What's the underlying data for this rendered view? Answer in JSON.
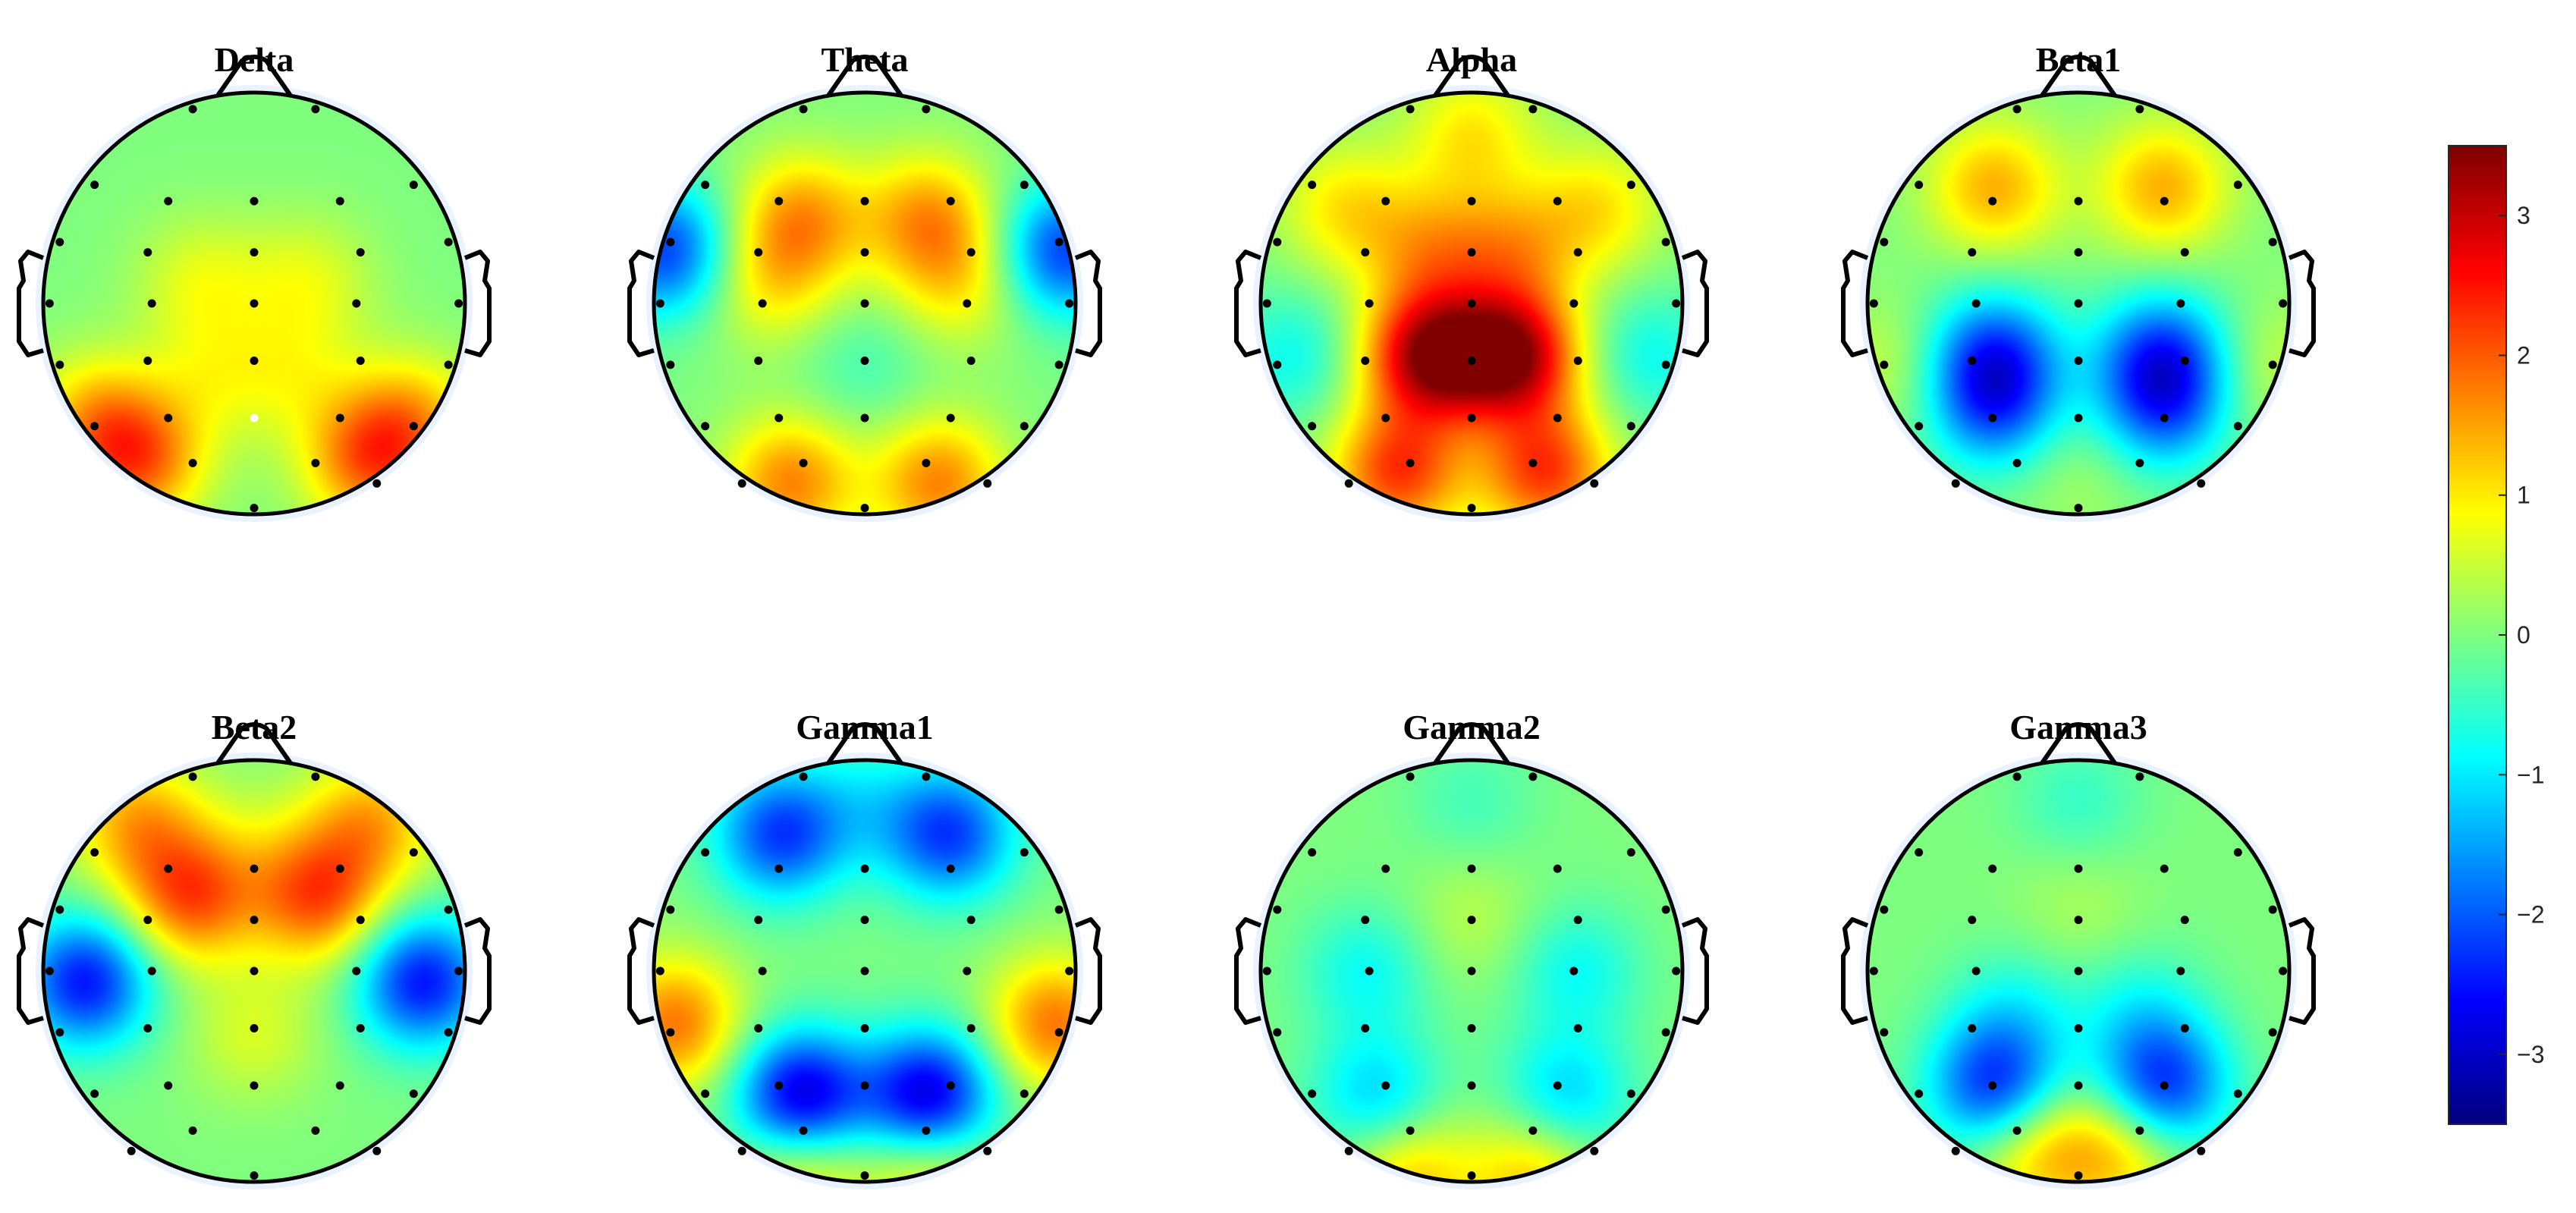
{
  "chart_data": {
    "type": "heatmap",
    "panels": [
      {
        "title": "Delta",
        "sources": [
          {
            "x": -0.55,
            "y": -0.75,
            "v": 1.8
          },
          {
            "x": 0.55,
            "y": -0.75,
            "v": 1.8
          },
          {
            "x": -0.75,
            "y": -0.55,
            "v": 1.2
          },
          {
            "x": 0.75,
            "y": -0.55,
            "v": 1.2
          },
          {
            "x": -0.25,
            "y": 0.1,
            "v": 0.7
          },
          {
            "x": 0.25,
            "y": 0.1,
            "v": 0.7
          },
          {
            "x": -0.2,
            "y": -0.35,
            "v": 0.6
          },
          {
            "x": 0.2,
            "y": -0.35,
            "v": 0.6
          }
        ],
        "highlight_sensors": [
          24,
          27
        ]
      },
      {
        "title": "Theta",
        "sources": [
          {
            "x": -0.95,
            "y": 0.25,
            "v": -2.2
          },
          {
            "x": 0.95,
            "y": 0.25,
            "v": -2.2
          },
          {
            "x": -0.3,
            "y": 0.4,
            "v": 1.5
          },
          {
            "x": 0.3,
            "y": 0.4,
            "v": 1.5
          },
          {
            "x": -0.35,
            "y": -0.85,
            "v": 1.7
          },
          {
            "x": 0.35,
            "y": -0.85,
            "v": 1.7
          },
          {
            "x": -0.45,
            "y": 0.1,
            "v": 0.9
          },
          {
            "x": 0.45,
            "y": 0.1,
            "v": 0.9
          },
          {
            "x": 0,
            "y": -0.3,
            "v": -0.4
          }
        ]
      },
      {
        "title": "Alpha",
        "sources": [
          {
            "x": -0.2,
            "y": -0.25,
            "v": 3.2
          },
          {
            "x": 0.2,
            "y": -0.25,
            "v": 3.2
          },
          {
            "x": -0.35,
            "y": -0.8,
            "v": 2.2
          },
          {
            "x": 0.35,
            "y": -0.8,
            "v": 2.2
          },
          {
            "x": -0.2,
            "y": 0.25,
            "v": 1.2
          },
          {
            "x": 0.2,
            "y": 0.25,
            "v": 1.2
          },
          {
            "x": -0.85,
            "y": -0.25,
            "v": -0.8
          },
          {
            "x": 0.85,
            "y": -0.25,
            "v": -0.8
          },
          {
            "x": -0.6,
            "y": 0.45,
            "v": 1.0
          },
          {
            "x": 0.6,
            "y": 0.45,
            "v": 1.0
          },
          {
            "x": 0,
            "y": 0.8,
            "v": 1.0
          }
        ]
      },
      {
        "title": "Beta1",
        "sources": [
          {
            "x": -0.4,
            "y": -0.25,
            "v": -2.0
          },
          {
            "x": 0.4,
            "y": -0.25,
            "v": -2.0
          },
          {
            "x": -0.4,
            "y": -0.5,
            "v": -1.6
          },
          {
            "x": 0.4,
            "y": -0.5,
            "v": -1.6
          },
          {
            "x": -0.4,
            "y": 0.55,
            "v": 1.4
          },
          {
            "x": 0.4,
            "y": 0.55,
            "v": 1.4
          },
          {
            "x": -0.9,
            "y": -0.3,
            "v": 0.5
          },
          {
            "x": 0.9,
            "y": -0.3,
            "v": 0.5
          },
          {
            "x": 0,
            "y": -0.8,
            "v": 0.3
          }
        ]
      },
      {
        "title": "Beta2",
        "sources": [
          {
            "x": -0.8,
            "y": -0.05,
            "v": -2.5
          },
          {
            "x": 0.8,
            "y": -0.05,
            "v": -2.5
          },
          {
            "x": -0.3,
            "y": 0.35,
            "v": 2.0
          },
          {
            "x": 0.3,
            "y": 0.35,
            "v": 2.0
          },
          {
            "x": -0.55,
            "y": 0.7,
            "v": 1.4
          },
          {
            "x": 0.55,
            "y": 0.7,
            "v": 1.4
          },
          {
            "x": 0,
            "y": 0.6,
            "v": 0.3
          },
          {
            "x": 0,
            "y": -0.3,
            "v": 0.6
          }
        ]
      },
      {
        "title": "Gamma1",
        "sources": [
          {
            "x": -0.3,
            "y": -0.6,
            "v": -3.0
          },
          {
            "x": 0.3,
            "y": -0.6,
            "v": -3.0
          },
          {
            "x": -0.4,
            "y": 0.65,
            "v": -2.2
          },
          {
            "x": 0.4,
            "y": 0.65,
            "v": -2.2
          },
          {
            "x": -0.9,
            "y": -0.25,
            "v": 1.8
          },
          {
            "x": 0.9,
            "y": -0.25,
            "v": 1.8
          },
          {
            "x": -0.3,
            "y": -0.95,
            "v": 1.2
          },
          {
            "x": 0.3,
            "y": -0.95,
            "v": 1.2
          },
          {
            "x": 0,
            "y": 0.8,
            "v": -0.6
          }
        ]
      },
      {
        "title": "Gamma2",
        "sources": [
          {
            "x": -0.45,
            "y": -0.6,
            "v": -1.2
          },
          {
            "x": 0.45,
            "y": -0.6,
            "v": -1.2
          },
          {
            "x": -0.5,
            "y": 0.0,
            "v": -0.8
          },
          {
            "x": 0.5,
            "y": 0.0,
            "v": -0.8
          },
          {
            "x": -0.3,
            "y": -0.98,
            "v": 1.3
          },
          {
            "x": 0.3,
            "y": -0.98,
            "v": 1.3
          },
          {
            "x": 0,
            "y": 0.25,
            "v": 0.4
          },
          {
            "x": 0,
            "y": 0.8,
            "v": -0.4
          }
        ]
      },
      {
        "title": "Gamma3",
        "sources": [
          {
            "x": -0.4,
            "y": -0.55,
            "v": -2.3
          },
          {
            "x": 0.4,
            "y": -0.55,
            "v": -2.3
          },
          {
            "x": -0.2,
            "y": -0.85,
            "v": 1.3
          },
          {
            "x": 0.2,
            "y": -0.85,
            "v": 1.3
          },
          {
            "x": -0.3,
            "y": -0.2,
            "v": -0.7
          },
          {
            "x": 0.3,
            "y": -0.2,
            "v": -0.7
          },
          {
            "x": 0,
            "y": 0.3,
            "v": 0.3
          },
          {
            "x": 0,
            "y": 0.8,
            "v": -0.5
          }
        ]
      }
    ],
    "colorbar": {
      "colormap": "jet",
      "limits": [
        -3.5,
        3.5
      ],
      "ticks": [
        3,
        2,
        1,
        0,
        -1,
        -2,
        -3
      ],
      "tick_labels": [
        "3",
        "2",
        "1",
        "0",
        "−1",
        "−2",
        "−3"
      ]
    },
    "sensors": [
      [
        -0.3,
        0.95
      ],
      [
        0.3,
        0.95
      ],
      [
        -0.78,
        0.58
      ],
      [
        -0.42,
        0.5
      ],
      [
        0,
        0.5
      ],
      [
        0.42,
        0.5
      ],
      [
        0.78,
        0.58
      ],
      [
        -0.95,
        0.3
      ],
      [
        -0.52,
        0.25
      ],
      [
        0,
        0.25
      ],
      [
        0.52,
        0.25
      ],
      [
        0.95,
        0.3
      ],
      [
        -1.0,
        0
      ],
      [
        -0.5,
        0
      ],
      [
        0,
        0
      ],
      [
        0.5,
        0
      ],
      [
        1.0,
        0
      ],
      [
        -0.95,
        -0.3
      ],
      [
        -0.52,
        -0.28
      ],
      [
        0,
        -0.28
      ],
      [
        0.52,
        -0.28
      ],
      [
        0.95,
        -0.3
      ],
      [
        -0.78,
        -0.6
      ],
      [
        -0.42,
        -0.56
      ],
      [
        0,
        -0.56
      ],
      [
        0.42,
        -0.56
      ],
      [
        0.78,
        -0.6
      ],
      [
        -0.6,
        -0.88
      ],
      [
        -0.3,
        -0.78
      ],
      [
        0,
        -1.0
      ],
      [
        0.3,
        -0.78
      ],
      [
        0.6,
        -0.88
      ]
    ]
  }
}
